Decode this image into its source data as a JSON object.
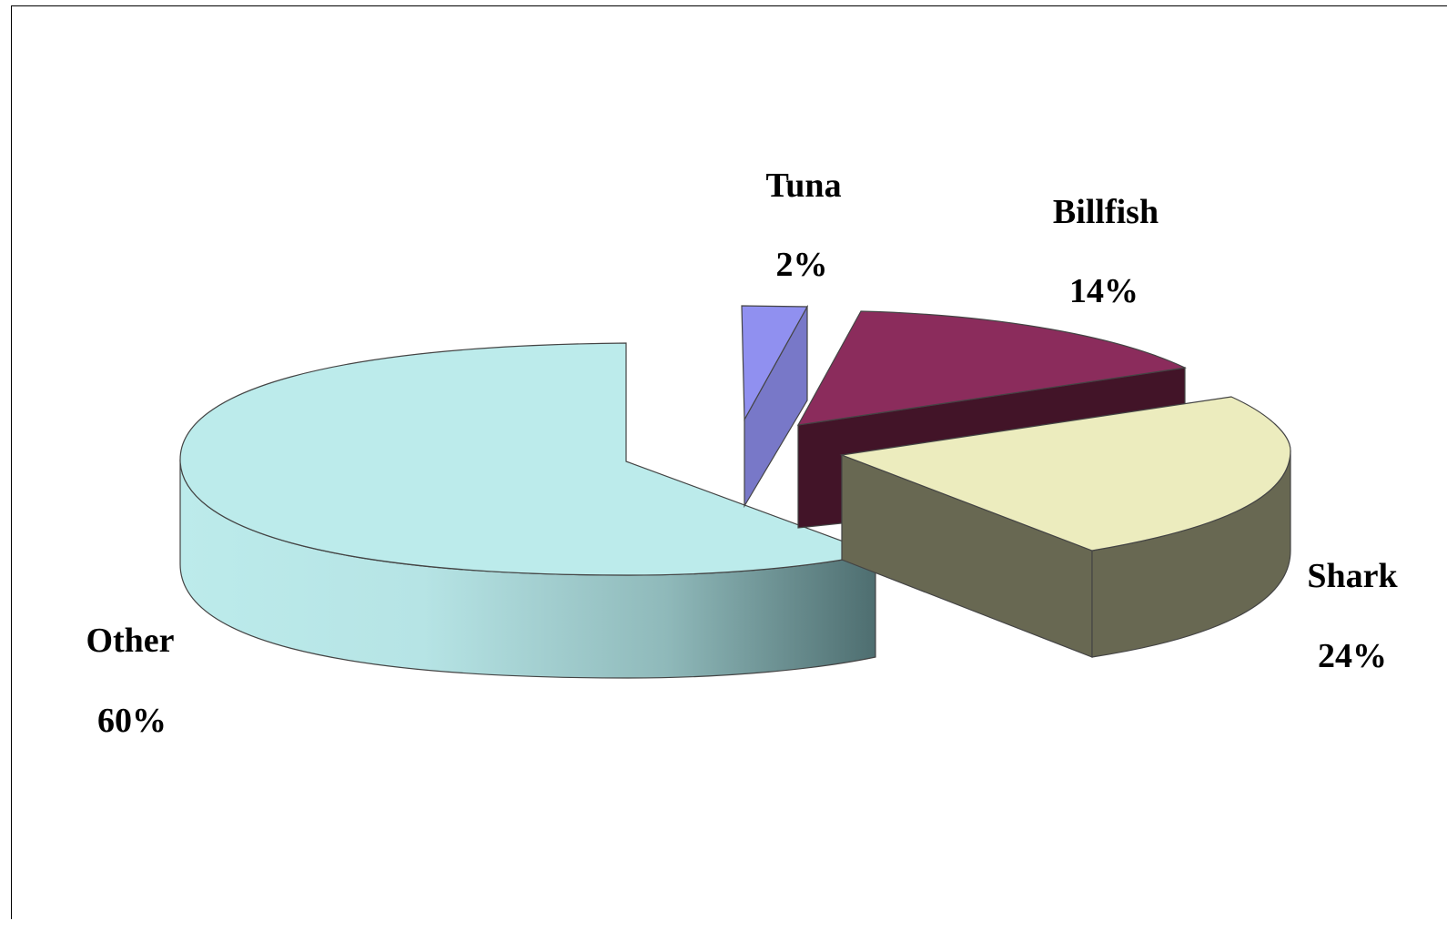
{
  "chart_data": {
    "type": "pie",
    "style": "3d-exploded",
    "title": "",
    "slices": [
      {
        "label": "Tuna",
        "value": 2,
        "value_label": "2%",
        "color": "#9090f0"
      },
      {
        "label": "Billfish",
        "value": 14,
        "value_label": "14%",
        "color": "#8b2c5c"
      },
      {
        "label": "Shark",
        "value": 24,
        "value_label": "24%",
        "color": "#ececbe"
      },
      {
        "label": "Other",
        "value": 60,
        "value_label": "60%",
        "color": "#bcebeb"
      }
    ],
    "legend": "none",
    "data_labels": "outside, category name and percentage"
  }
}
